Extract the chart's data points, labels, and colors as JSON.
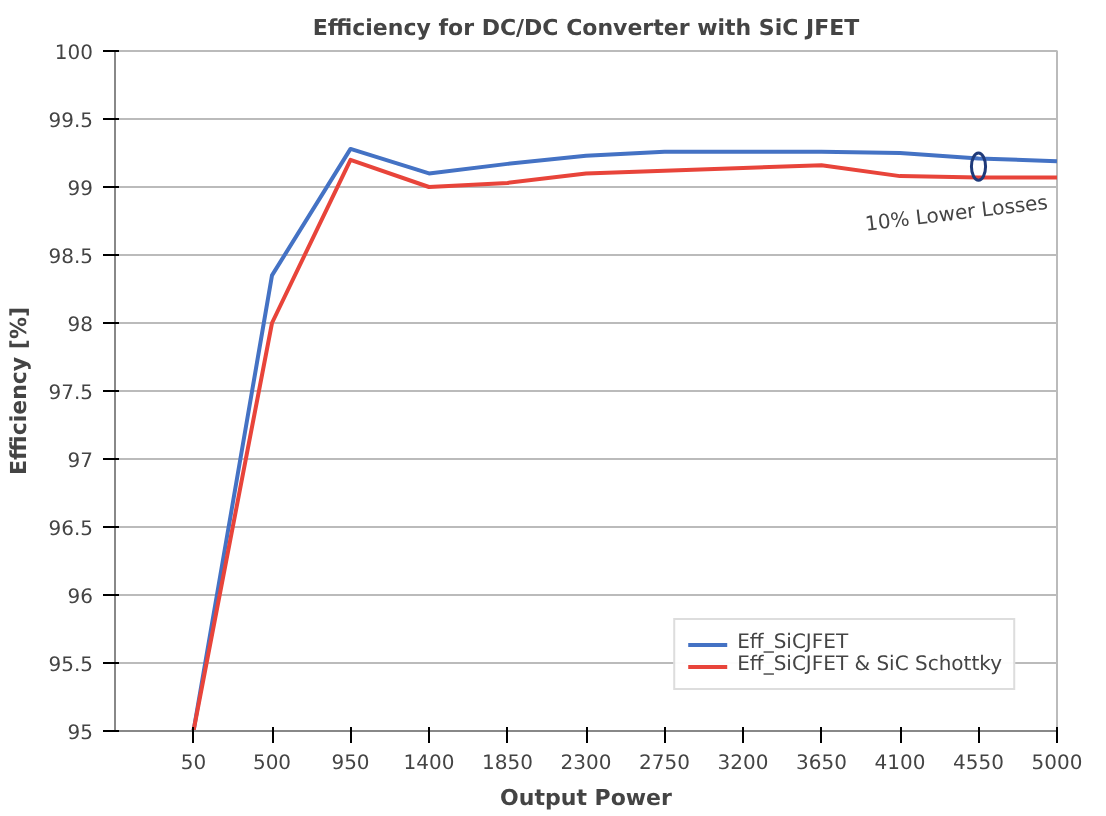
{
  "chart_data": {
    "type": "line",
    "title": "Efficiency for DC/DC Converter with SiC JFET",
    "xlabel": "Output Power",
    "ylabel": "Efficiency [%]",
    "categories": [
      "50",
      "500",
      "950",
      "1400",
      "1850",
      "2300",
      "2750",
      "3200",
      "3650",
      "4100",
      "4550",
      "5000"
    ],
    "series": [
      {
        "name": "Eff_SiCJFET",
        "color": "#4472c4",
        "values": [
          95,
          98.35,
          99.28,
          99.1,
          99.17,
          99.23,
          99.26,
          99.26,
          99.26,
          99.25,
          99.21,
          99.19
        ]
      },
      {
        "name": "Eff_SiCJFET & SiC Schottky",
        "color": "#e8443a",
        "values": [
          95,
          98.0,
          99.2,
          99.0,
          99.03,
          99.1,
          99.12,
          99.14,
          99.16,
          99.08,
          99.07,
          99.07
        ]
      }
    ],
    "ylim": [
      95,
      100
    ],
    "yticks": [
      95,
      95.5,
      96,
      96.5,
      97,
      97.5,
      98,
      98.5,
      99,
      99.5,
      100
    ],
    "grid": "y",
    "legend": "bottom right",
    "marker": "none",
    "line_style": "solid",
    "annotations": [
      {
        "text": "10% Lower Losses",
        "x": "4550",
        "y": 99.15
      }
    ]
  }
}
